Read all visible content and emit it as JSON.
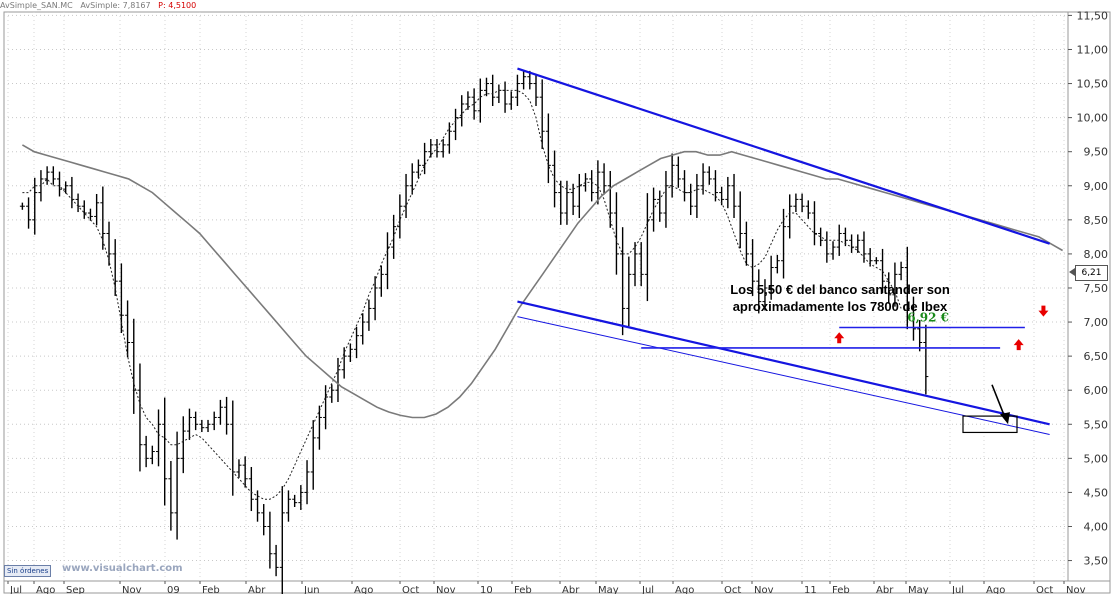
{
  "header": {
    "symbol": "AvSimple_SAN.MC",
    "indicator": "AvSimple: 7,8167",
    "price": "P: 4,5100"
  },
  "footer": {
    "button_label": "Sin órdenes",
    "watermark": "www.visualchart.com"
  },
  "last_price_tag": "6,21",
  "colors": {
    "channel": "#1515e0",
    "support": "#2020e8",
    "annotation_value": "#1a8a1a",
    "arrow": "#e80000",
    "ma_slow": "#7a7a7a",
    "bars": "#000000"
  },
  "chart_data": {
    "type": "ohlc-bar",
    "title": "",
    "y_axis": {
      "position": "right",
      "range": [
        3.2,
        11.55
      ],
      "ticks": [
        "3,50",
        "4,00",
        "4,50",
        "5,00",
        "5,50",
        "6,00",
        "6,50",
        "7,00",
        "7,50",
        "8,00",
        "8,50",
        "9,00",
        "9,50",
        "10,00",
        "10,50",
        "11,00",
        "11,50"
      ]
    },
    "x_axis": {
      "labels": [
        "Jul",
        "Ago",
        "Sep",
        "Nov",
        "09",
        "Feb",
        "Abr",
        "Jun",
        "Ago",
        "Oct",
        "Nov",
        "10",
        "Feb",
        "Abr",
        "May",
        "Jul",
        "Ago",
        "Oct",
        "Nov",
        "11",
        "Feb",
        "Abr",
        "May",
        "Jul",
        "Ago",
        "Oct",
        "Nov"
      ]
    },
    "weekly_close": [
      8.7,
      8.5,
      8.9,
      9.1,
      9.2,
      9.1,
      8.95,
      9.0,
      8.8,
      8.7,
      8.6,
      8.55,
      8.75,
      8.3,
      8.0,
      7.6,
      7.1,
      6.7,
      6.0,
      5.2,
      5.0,
      5.1,
      5.5,
      4.7,
      4.2,
      5.0,
      5.4,
      5.6,
      5.5,
      5.45,
      5.5,
      5.6,
      5.75,
      5.5,
      4.8,
      4.9,
      4.7,
      4.4,
      4.2,
      4.0,
      3.6,
      3.4,
      4.2,
      4.4,
      4.35,
      4.5,
      4.8,
      5.3,
      5.6,
      5.9,
      6.0,
      6.3,
      6.5,
      6.6,
      6.8,
      7.0,
      7.2,
      7.5,
      7.7,
      8.1,
      8.4,
      8.7,
      9.0,
      9.2,
      9.3,
      9.5,
      9.6,
      9.5,
      9.6,
      9.8,
      10.0,
      10.2,
      10.3,
      10.1,
      10.4,
      10.5,
      10.3,
      10.4,
      10.2,
      10.3,
      10.5,
      10.6,
      10.5,
      10.3,
      9.8,
      9.3,
      8.9,
      8.6,
      8.9,
      8.7,
      9.0,
      9.1,
      8.9,
      9.2,
      9.0,
      8.6,
      8.0,
      7.2,
      7.7,
      8.0,
      7.7,
      8.5,
      8.8,
      8.6,
      9.0,
      9.3,
      9.1,
      8.9,
      8.7,
      9.0,
      9.2,
      9.1,
      8.9,
      8.8,
      9.0,
      8.7,
      8.3,
      8.0,
      7.6,
      7.3,
      7.5,
      7.8,
      7.9,
      8.4,
      8.7,
      8.8,
      8.7,
      8.6,
      8.3,
      8.2,
      8.0,
      8.1,
      8.3,
      8.2,
      8.1,
      8.2,
      8.0,
      7.9,
      7.9,
      7.6,
      7.4,
      7.7,
      7.8,
      7.2,
      6.9,
      6.7,
      6.2
    ],
    "series": [
      {
        "type": "ma_fast",
        "values": [
          8.9,
          8.9,
          9.0,
          9.0,
          9.1,
          9.0,
          9.0,
          8.9,
          8.8,
          8.7,
          8.6,
          8.5,
          8.4,
          8.2,
          7.9,
          7.5,
          7.0,
          6.5,
          6.1,
          5.8,
          5.6,
          5.5,
          5.35,
          5.3,
          5.2,
          5.2,
          5.25,
          5.3,
          5.35,
          5.3,
          5.2,
          5.1,
          5.0,
          4.9,
          4.8,
          4.7,
          4.6,
          4.5,
          4.45,
          4.4,
          4.4,
          4.45,
          4.55,
          4.7,
          4.9,
          5.1,
          5.3,
          5.5,
          5.7,
          5.9,
          6.1,
          6.3,
          6.55,
          6.75,
          6.95,
          7.15,
          7.4,
          7.6,
          7.85,
          8.05,
          8.25,
          8.5,
          8.7,
          8.9,
          9.1,
          9.3,
          9.45,
          9.55,
          9.7,
          9.85,
          9.95,
          10.05,
          10.15,
          10.2,
          10.3,
          10.35,
          10.35,
          10.4,
          10.4,
          10.4,
          10.4,
          10.35,
          10.25,
          10.0,
          9.6,
          9.3,
          9.1,
          9.0,
          8.95,
          8.95,
          9.0,
          9.05,
          9.05,
          9.0,
          8.8,
          8.5,
          8.2,
          8.0,
          8.0,
          8.1,
          8.25,
          8.45,
          8.65,
          8.8,
          8.95,
          9.0,
          8.95,
          8.9,
          8.9,
          8.95,
          8.95,
          8.9,
          8.85,
          8.75,
          8.55,
          8.3,
          8.05,
          7.85,
          7.8,
          7.85,
          7.95,
          8.15,
          8.35,
          8.5,
          8.6,
          8.6,
          8.5,
          8.4,
          8.3,
          8.25,
          8.2,
          8.2,
          8.2,
          8.15,
          8.1,
          8.05,
          7.95,
          7.85,
          7.8,
          7.75,
          7.6,
          7.45,
          7.2
        ]
      },
      {
        "type": "ma_slow",
        "values": [
          9.6,
          9.5,
          9.45,
          9.4,
          9.35,
          9.3,
          9.25,
          9.2,
          9.15,
          9.1,
          9.0,
          8.9,
          8.75,
          8.6,
          8.45,
          8.3,
          8.1,
          7.9,
          7.7,
          7.5,
          7.3,
          7.1,
          6.9,
          6.7,
          6.5,
          6.35,
          6.2,
          6.05,
          5.95,
          5.85,
          5.75,
          5.68,
          5.63,
          5.6,
          5.6,
          5.65,
          5.75,
          5.9,
          6.1,
          6.35,
          6.6,
          6.9,
          7.2,
          7.45,
          7.7,
          7.95,
          8.2,
          8.45,
          8.65,
          8.85,
          9.0,
          9.1,
          9.2,
          9.3,
          9.4,
          9.45,
          9.5,
          9.5,
          9.45,
          9.45,
          9.5,
          9.45,
          9.4,
          9.35,
          9.3,
          9.25,
          9.2,
          9.15,
          9.1,
          9.1,
          9.05,
          9.0,
          8.95,
          8.9,
          8.85,
          8.8,
          8.75,
          8.7,
          8.65,
          8.6,
          8.55,
          8.5,
          8.45,
          8.4,
          8.35,
          8.3,
          8.25,
          8.15,
          8.05
        ]
      }
    ],
    "annotations": [
      {
        "type": "text",
        "label": "6,92 €",
        "value": 6.92
      },
      {
        "type": "text",
        "label": "Los 5,50 € del banco santander son"
      },
      {
        "type": "text",
        "label": "aproximadamente los 7800 de Ibex"
      }
    ],
    "trendlines": [
      {
        "name": "upper-channel",
        "from": {
          "week": 82,
          "price": 10.72
        },
        "to": {
          "week": 168,
          "price": 8.15
        }
      },
      {
        "name": "lower-channel",
        "from": {
          "week": 82,
          "price": 7.3
        },
        "to": {
          "week": 168,
          "price": 5.5
        }
      },
      {
        "name": "lower-channel-thin",
        "from": {
          "week": 82,
          "price": 7.08
        },
        "to": {
          "week": 168,
          "price": 5.35
        }
      },
      {
        "name": "support-6.92",
        "from": {
          "week": 134,
          "price": 6.92
        },
        "to": {
          "week": 164,
          "price": 6.92
        }
      },
      {
        "name": "support-6.62",
        "from": {
          "week": 102,
          "price": 6.62
        },
        "to": {
          "week": 160,
          "price": 6.62
        }
      }
    ],
    "grid": true,
    "legend": "none"
  }
}
